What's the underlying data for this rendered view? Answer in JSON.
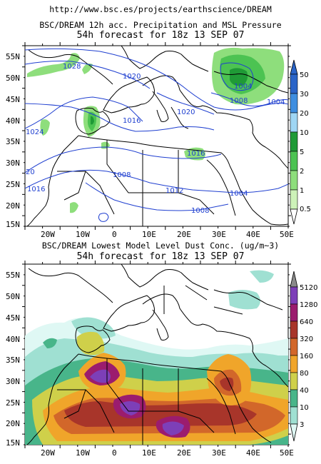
{
  "header": {
    "url": "http://www.bsc.es/projects/earthscience/DREAM"
  },
  "map_top": {
    "title": "BSC/DREAM 12h acc. Precipitation and MSL Pressure",
    "subtitle": "54h forecast for 18z 13 SEP 07",
    "lat_labels": [
      "55N",
      "50N",
      "45N",
      "40N",
      "35N",
      "30N",
      "25N",
      "20N",
      "15N"
    ],
    "lon_labels": [
      "20W",
      "10W",
      "0",
      "10E",
      "20E",
      "30E",
      "40E",
      "50E"
    ],
    "isobar_labels": [
      "1028",
      "1020",
      "1016",
      "1020",
      "1004",
      "1008",
      "1004",
      "1024",
      "1016",
      "1016",
      "1008",
      "1012",
      "1004",
      "1008",
      "20"
    ],
    "colorbar": {
      "labels": [
        "50",
        "30",
        "20",
        "10",
        "5",
        "2",
        "1",
        "0.5"
      ],
      "colors": [
        "#2a64c8",
        "#3e8ee0",
        "#6fb8ee",
        "#9fd6f4",
        "#1f9a36",
        "#4cc352",
        "#8ede7c",
        "#cdf2b8"
      ]
    }
  },
  "map_bottom": {
    "title": "BSC/DREAM Lowest Model Level Dust Conc. (ug/m~3)",
    "subtitle": "54h forecast for 18z 13 SEP 07",
    "lat_labels": [
      "55N",
      "50N",
      "45N",
      "40N",
      "35N",
      "30N",
      "25N",
      "20N",
      "15N"
    ],
    "lon_labels": [
      "20W",
      "10W",
      "0",
      "10E",
      "20E",
      "30E",
      "40E",
      "50E"
    ],
    "colorbar": {
      "labels": [
        "5120",
        "1280",
        "640",
        "320",
        "160",
        "80",
        "40",
        "10",
        "3"
      ],
      "colors": [
        "#8a8a8a",
        "#7d3fb8",
        "#9b1c6e",
        "#a8352a",
        "#d2672a",
        "#f0a52a",
        "#cfd04a",
        "#48b58a",
        "#9fe0d2",
        "#dff8f4"
      ]
    }
  },
  "style": {
    "isobar_color": "#1f3fd0",
    "land_line_color": "#000000"
  }
}
